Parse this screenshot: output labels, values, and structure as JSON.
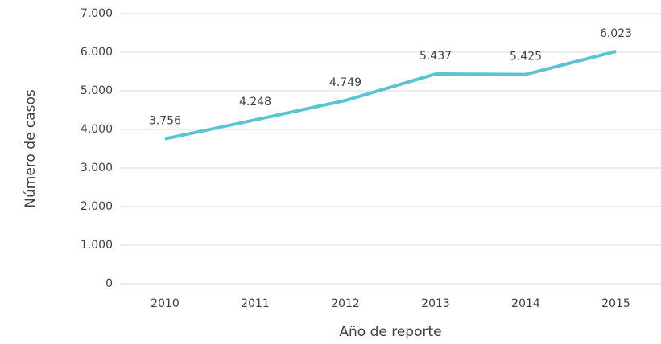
{
  "chart_data": {
    "type": "line",
    "x_label": "Año de reporte",
    "y_label": "Número de casos",
    "categories": [
      "2010",
      "2011",
      "2012",
      "2013",
      "2014",
      "2015"
    ],
    "series": [
      {
        "name": "Número de casos",
        "color": "#5bc4d1",
        "values": [
          3756,
          4248,
          4749,
          5437,
          5425,
          6023
        ],
        "value_labels": [
          "3.756",
          "4.248",
          "4.749",
          "5.437",
          "5.425",
          "6.023"
        ]
      }
    ],
    "ylim": [
      0,
      7000
    ],
    "yticks": [
      0,
      {
        "value": 1000,
        "label": "1.000"
      },
      {
        "value": 2000,
        "label": "2.000"
      },
      {
        "value": 3000,
        "label": "3.000"
      },
      {
        "value": 4000,
        "label": "4.000"
      },
      {
        "value": 5000,
        "label": "5.000"
      },
      {
        "value": 6000,
        "label": "6.000"
      },
      {
        "value": 7000,
        "label": "7.000"
      }
    ],
    "grid": true
  }
}
